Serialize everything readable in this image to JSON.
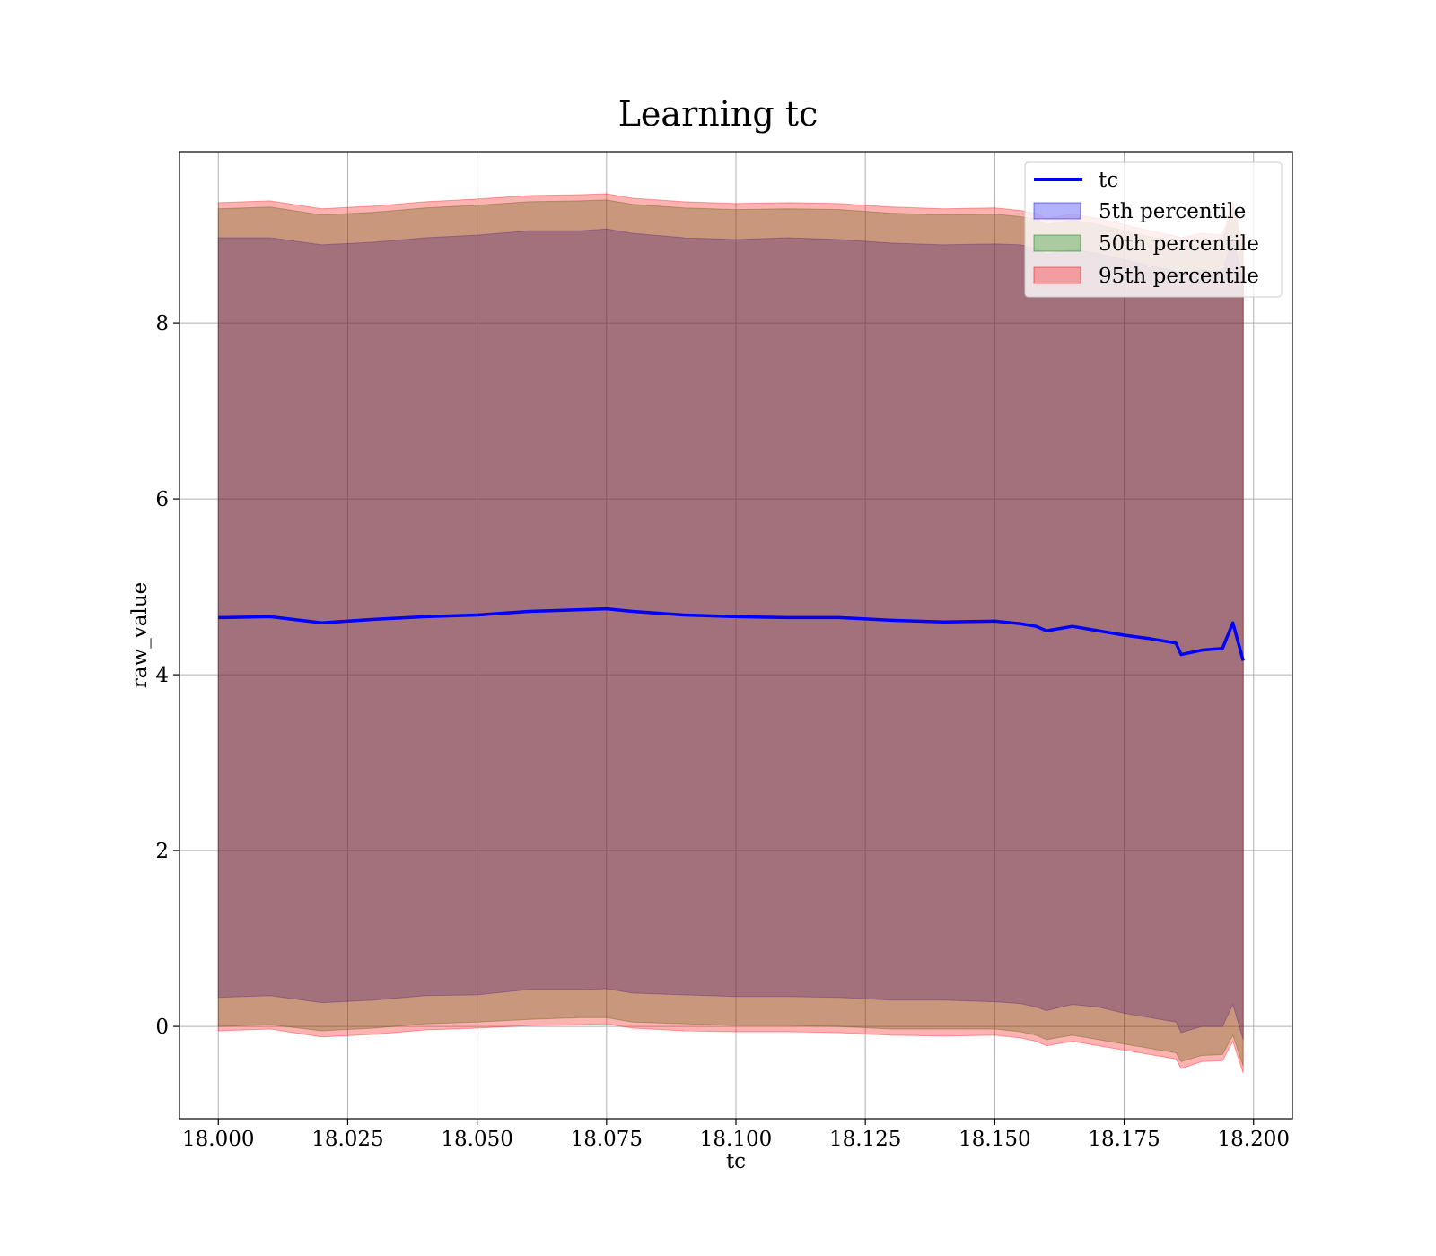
{
  "chart_data": {
    "type": "line",
    "title": "Learning tc",
    "xlabel": "tc",
    "ylabel": "raw_value",
    "xlim": [
      17.9925,
      18.2075
    ],
    "ylim": [
      -1.05,
      9.95
    ],
    "x_ticks": [
      18.0,
      18.025,
      18.05,
      18.075,
      18.1,
      18.125,
      18.15,
      18.175,
      18.2
    ],
    "x_tick_labels": [
      "18.000",
      "18.025",
      "18.050",
      "18.075",
      "18.100",
      "18.125",
      "18.150",
      "18.175",
      "18.200"
    ],
    "y_ticks": [
      0,
      2,
      4,
      6,
      8
    ],
    "y_tick_labels": [
      "0",
      "2",
      "4",
      "6",
      "8"
    ],
    "grid": true,
    "legend_position": "top-right",
    "colors": {
      "line": "#0000ff",
      "band_5th": "#0000ff",
      "band_50th": "#008000",
      "band_95th": "#ff0000"
    },
    "x": [
      18.0,
      18.01,
      18.02,
      18.03,
      18.04,
      18.05,
      18.06,
      18.07,
      18.075,
      18.08,
      18.09,
      18.1,
      18.11,
      18.12,
      18.13,
      18.14,
      18.15,
      18.155,
      18.158,
      18.16,
      18.165,
      18.17,
      18.175,
      18.18,
      18.185,
      18.186,
      18.19,
      18.194,
      18.196,
      18.198
    ],
    "series": [
      {
        "name": "tc",
        "kind": "line",
        "values": [
          4.65,
          4.66,
          4.59,
          4.63,
          4.66,
          4.68,
          4.72,
          4.74,
          4.75,
          4.72,
          4.68,
          4.66,
          4.65,
          4.65,
          4.62,
          4.6,
          4.61,
          4.58,
          4.55,
          4.5,
          4.55,
          4.5,
          4.45,
          4.41,
          4.36,
          4.23,
          4.28,
          4.3,
          4.59,
          4.16
        ]
      },
      {
        "name": "5th percentile",
        "kind": "band",
        "lower": [
          0.33,
          0.35,
          0.27,
          0.3,
          0.35,
          0.36,
          0.42,
          0.42,
          0.43,
          0.38,
          0.36,
          0.34,
          0.34,
          0.33,
          0.3,
          0.3,
          0.28,
          0.26,
          0.22,
          0.18,
          0.25,
          0.22,
          0.15,
          0.1,
          0.05,
          -0.07,
          0.0,
          0.0,
          0.25,
          -0.15
        ],
        "upper": [
          8.97,
          8.97,
          8.89,
          8.92,
          8.97,
          9.0,
          9.05,
          9.05,
          9.07,
          9.02,
          8.97,
          8.95,
          8.97,
          8.95,
          8.91,
          8.89,
          8.9,
          8.89,
          8.85,
          8.78,
          8.84,
          8.79,
          8.72,
          8.65,
          8.59,
          8.55,
          8.61,
          8.58,
          8.97,
          8.47
        ]
      },
      {
        "name": "50th percentile",
        "kind": "band",
        "lower": [
          0.0,
          0.02,
          -0.05,
          -0.02,
          0.03,
          0.05,
          0.08,
          0.1,
          0.1,
          0.05,
          0.03,
          0.01,
          0.01,
          0.0,
          -0.03,
          -0.03,
          -0.03,
          -0.06,
          -0.1,
          -0.15,
          -0.1,
          -0.15,
          -0.2,
          -0.25,
          -0.3,
          -0.4,
          -0.33,
          -0.32,
          -0.1,
          -0.45
        ],
        "upper": [
          9.3,
          9.32,
          9.23,
          9.26,
          9.31,
          9.34,
          9.38,
          9.39,
          9.4,
          9.35,
          9.31,
          9.29,
          9.3,
          9.29,
          9.25,
          9.23,
          9.24,
          9.21,
          9.18,
          9.12,
          9.17,
          9.12,
          9.05,
          8.98,
          8.92,
          8.9,
          8.95,
          8.93,
          9.31,
          8.8
        ]
      },
      {
        "name": "95th percentile",
        "kind": "band",
        "lower": [
          -0.05,
          -0.03,
          -0.12,
          -0.09,
          -0.04,
          -0.02,
          0.01,
          0.02,
          0.03,
          -0.02,
          -0.05,
          -0.06,
          -0.06,
          -0.07,
          -0.1,
          -0.11,
          -0.1,
          -0.13,
          -0.17,
          -0.22,
          -0.17,
          -0.22,
          -0.27,
          -0.32,
          -0.37,
          -0.48,
          -0.4,
          -0.39,
          -0.17,
          -0.53
        ],
        "upper": [
          9.37,
          9.39,
          9.3,
          9.33,
          9.38,
          9.41,
          9.45,
          9.46,
          9.47,
          9.42,
          9.38,
          9.36,
          9.37,
          9.36,
          9.32,
          9.3,
          9.31,
          9.28,
          9.25,
          9.19,
          9.24,
          9.19,
          9.12,
          9.05,
          8.99,
          8.97,
          9.02,
          9.0,
          9.38,
          8.87
        ]
      }
    ]
  }
}
